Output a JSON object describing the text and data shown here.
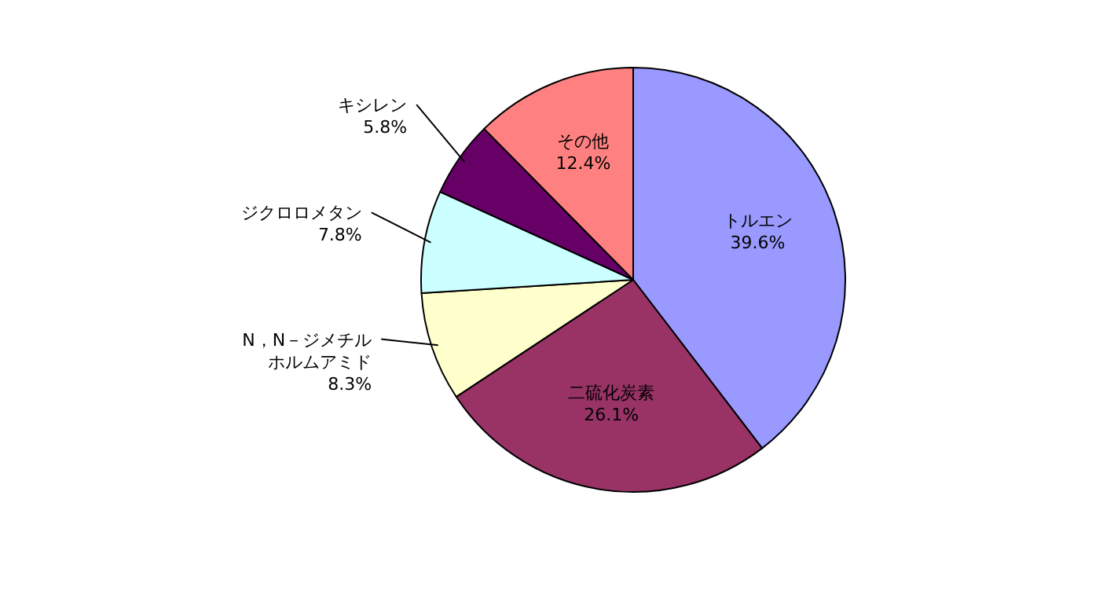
{
  "chart_data": {
    "type": "pie",
    "categories": [
      "トルエン",
      "二硫化炭素",
      "N，N－ジメチルホルムアミド",
      "ジクロロメタン",
      "キシレン",
      "その他"
    ],
    "values": [
      39.6,
      26.1,
      8.3,
      7.8,
      5.8,
      12.4
    ],
    "colors": [
      "#9999ff",
      "#993366",
      "#ffffcc",
      "#ccffff",
      "#660066",
      "#ff8080"
    ],
    "value_labels": [
      "39.6%",
      "26.1%",
      "8.3%",
      "7.8%",
      "5.8%",
      "12.4%"
    ]
  }
}
